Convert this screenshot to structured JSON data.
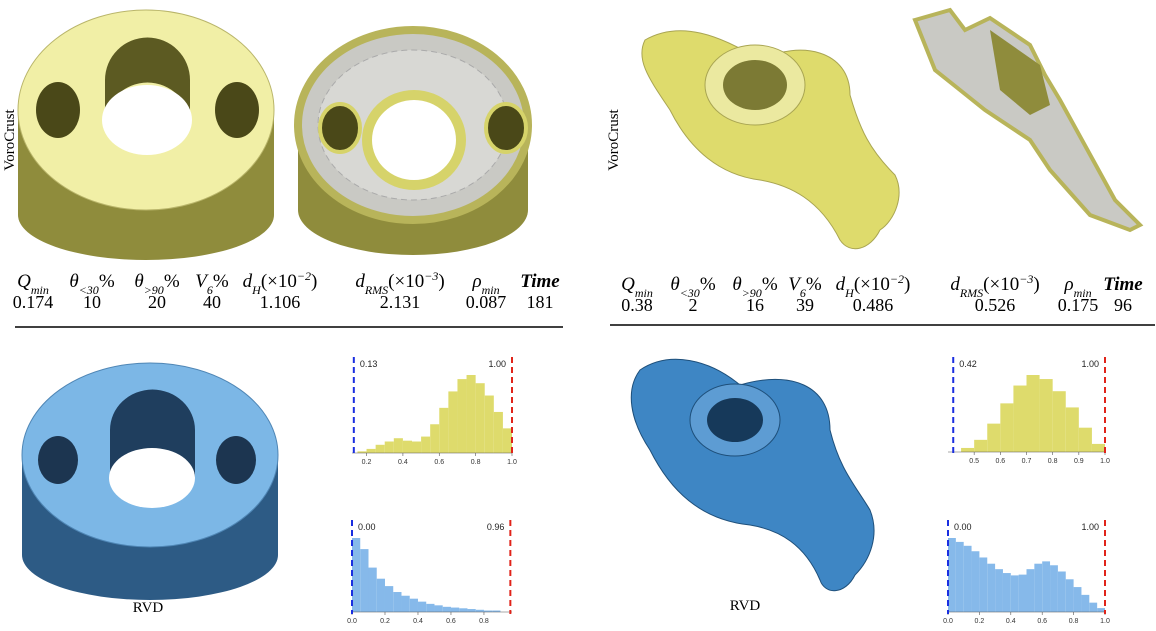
{
  "panels": [
    {
      "row_label": "VoroCrust",
      "bottom_label": "RVD",
      "table": {
        "headers": [
          {
            "symbol": "Q",
            "sub": "min"
          },
          {
            "symbol": "θ",
            "sub": "<30",
            "rest": "%"
          },
          {
            "symbol": "θ",
            "sub": ">90",
            "rest": "%"
          },
          {
            "symbol": "V",
            "sub": "6",
            "rest": "%"
          },
          {
            "symbol": "d",
            "sub": "H",
            "rest": "(×10",
            "sup": "−2",
            "close": ")"
          },
          {
            "symbol": "d",
            "sub": "RMS",
            "rest": "(×10",
            "sup": "−3",
            "close": ")"
          },
          {
            "symbol": "ρ",
            "sub": "min"
          },
          {
            "symbol": "Time"
          }
        ],
        "values": [
          0.174,
          10,
          20,
          40,
          1.106,
          2.131,
          0.087,
          181
        ]
      },
      "histograms": [
        {
          "color": "#dedb6c",
          "bins": [
            0.15,
            0.2,
            0.25,
            0.3,
            0.35,
            0.4,
            0.45,
            0.5,
            0.55,
            0.6,
            0.65,
            0.7,
            0.75,
            0.8,
            0.85,
            0.9,
            0.95,
            1.0
          ],
          "counts": [
            2,
            5,
            10,
            14,
            18,
            15,
            14,
            20,
            35,
            55,
            75,
            90,
            95,
            85,
            70,
            50,
            30
          ],
          "xlim": [
            0.12,
            1.0
          ],
          "xticks": [
            0.2,
            0.4,
            0.6,
            0.8,
            {
              "value": 1,
              "label": "1.0"
            }
          ],
          "min_label": 0.13,
          "max_label": {
            "value": 1,
            "label": "1.00"
          }
        },
        {
          "color": "#86b9ea",
          "bins": [
            0,
            0.05,
            0.1,
            0.15,
            0.2,
            0.25,
            0.3,
            0.35,
            0.4,
            0.45,
            0.5,
            0.55,
            0.6,
            0.65,
            0.7,
            0.75,
            0.8,
            0.85,
            0.9
          ],
          "counts": [
            100,
            85,
            60,
            45,
            35,
            27,
            22,
            18,
            14,
            11,
            9,
            7,
            6,
            5,
            4,
            3,
            2,
            2
          ],
          "xlim": [
            0,
            0.97
          ],
          "xticks": [
            {
              "value": 0,
              "label": "0.0"
            },
            0.2,
            0.4,
            0.6,
            0.8
          ],
          "min_label": {
            "value": 0,
            "label": "0.00"
          },
          "max_label": 0.96
        }
      ]
    },
    {
      "row_label": "VoroCrust",
      "bottom_label": "RVD",
      "table": {
        "headers": [
          {
            "symbol": "Q",
            "sub": "min"
          },
          {
            "symbol": "θ",
            "sub": "<30",
            "rest": "%"
          },
          {
            "symbol": "θ",
            "sub": ">90",
            "rest": "%"
          },
          {
            "symbol": "V",
            "sub": "6",
            "rest": "%"
          },
          {
            "symbol": "d",
            "sub": "H",
            "rest": "(×10",
            "sup": "−2",
            "close": ")"
          },
          {
            "symbol": "d",
            "sub": "RMS",
            "rest": "(×10",
            "sup": "−3",
            "close": ")"
          },
          {
            "symbol": "ρ",
            "sub": "min"
          },
          {
            "symbol": "Time"
          }
        ],
        "values": [
          0.38,
          2,
          16,
          39,
          0.486,
          0.526,
          0.175,
          96
        ]
      },
      "histograms": [
        {
          "color": "#dedb6c",
          "bins": [
            0.45,
            0.5,
            0.55,
            0.6,
            0.65,
            0.7,
            0.75,
            0.8,
            0.85,
            0.9,
            0.95,
            1.0
          ],
          "counts": [
            5,
            15,
            35,
            60,
            82,
            95,
            90,
            75,
            55,
            30,
            10
          ],
          "xlim": [
            0.4,
            1.0
          ],
          "xticks": [
            0.5,
            0.6,
            0.7,
            0.8,
            0.9,
            {
              "value": 1,
              "label": "1.0"
            }
          ],
          "min_label": 0.42,
          "max_label": {
            "value": 1,
            "label": "1.00"
          }
        },
        {
          "color": "#86b9ea",
          "bins": [
            0,
            0.05,
            0.1,
            0.15,
            0.2,
            0.25,
            0.3,
            0.35,
            0.4,
            0.45,
            0.5,
            0.55,
            0.6,
            0.65,
            0.7,
            0.75,
            0.8,
            0.85,
            0.9,
            0.95,
            1.0
          ],
          "counts": [
            95,
            90,
            85,
            78,
            70,
            62,
            55,
            50,
            47,
            48,
            55,
            62,
            65,
            60,
            52,
            42,
            32,
            22,
            12,
            5
          ],
          "xlim": [
            0,
            1.0
          ],
          "xticks": [
            {
              "value": 0,
              "label": "0.0"
            },
            0.2,
            0.4,
            0.6,
            0.8,
            {
              "value": 1,
              "label": "1.0"
            }
          ],
          "min_label": {
            "value": 0,
            "label": "0.00"
          },
          "max_label": {
            "value": 1,
            "label": "1.00"
          }
        }
      ]
    }
  ]
}
